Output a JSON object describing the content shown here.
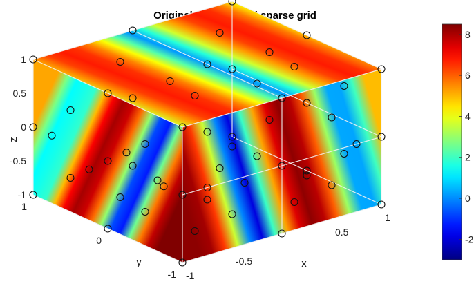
{
  "chart_data": {
    "type": "heatmap",
    "subtype": "3d-slice",
    "title": "Original function and sparse grid",
    "xlabel": "x",
    "ylabel": "y",
    "zlabel": "z",
    "x_ticks": [
      -1,
      -0.5,
      0,
      0.5,
      1
    ],
    "x_tick_labels": [
      "-1",
      "-0.5",
      "",
      "0.5",
      "1"
    ],
    "y_ticks": [
      -1,
      0,
      1
    ],
    "y_tick_labels": [
      "-1",
      "0",
      "1"
    ],
    "z_ticks": [
      -1,
      -0.5,
      0,
      0.5,
      1
    ],
    "z_tick_labels": [
      "-1",
      "-0.5",
      "0",
      "0.5",
      "1"
    ],
    "xlim": [
      -1,
      1
    ],
    "ylim": [
      -1,
      1
    ],
    "zlim": [
      -1,
      1
    ],
    "slices": {
      "x": [
        -1,
        0,
        1
      ],
      "y": [
        -1,
        1
      ],
      "z": [
        -1,
        0,
        1
      ]
    },
    "colorbar": {
      "colormap": "jet",
      "range": [
        -3,
        8.5
      ],
      "ticks": [
        -2,
        0,
        2,
        4,
        6,
        8
      ],
      "tick_labels": [
        "-2",
        "0",
        "2",
        "4",
        "6",
        "8"
      ]
    },
    "grid": false,
    "marker": "open-circle",
    "grid_points": [
      [
        -1,
        -1,
        1
      ],
      [
        1,
        -1,
        1
      ],
      [
        1,
        1,
        1
      ],
      [
        -1,
        1,
        1
      ],
      [
        -1,
        -1,
        -1
      ],
      [
        1,
        -1,
        -1
      ],
      [
        1,
        1,
        -1
      ],
      [
        -1,
        1,
        -1
      ],
      [
        0,
        -1,
        1
      ],
      [
        0,
        1,
        1
      ],
      [
        -1,
        0,
        1
      ],
      [
        1,
        0,
        1
      ],
      [
        0,
        0,
        1
      ],
      [
        0,
        -1,
        -1
      ],
      [
        0,
        1,
        -1
      ],
      [
        -1,
        0,
        -1
      ],
      [
        1,
        0,
        -1
      ],
      [
        0,
        0,
        -1
      ],
      [
        -1,
        -1,
        0
      ],
      [
        1,
        -1,
        0
      ],
      [
        1,
        1,
        0
      ],
      [
        -1,
        1,
        0
      ],
      [
        0,
        -1,
        0
      ],
      [
        0,
        1,
        0
      ],
      [
        -1,
        0,
        0
      ],
      [
        1,
        0,
        0
      ],
      [
        0,
        0,
        0
      ],
      [
        -0.5,
        -1,
        0.5
      ],
      [
        0.5,
        -1,
        0.5
      ],
      [
        -0.5,
        -1,
        -0.5
      ],
      [
        0.5,
        -1,
        -0.5
      ],
      [
        -1,
        -0.5,
        0.5
      ],
      [
        -1,
        0.5,
        0.5
      ],
      [
        -1,
        -0.5,
        -0.5
      ],
      [
        -1,
        0.5,
        -0.5
      ],
      [
        1,
        -0.5,
        0.5
      ],
      [
        1,
        0.5,
        0.5
      ],
      [
        1,
        -0.5,
        -0.5
      ],
      [
        1,
        0.5,
        -0.5
      ],
      [
        -0.5,
        0.5,
        1
      ],
      [
        0.5,
        0.5,
        1
      ],
      [
        -0.5,
        -0.5,
        1
      ],
      [
        0.5,
        -0.5,
        1
      ],
      [
        -0.5,
        0.5,
        -1
      ],
      [
        0.5,
        0.5,
        -1
      ],
      [
        -0.5,
        -0.5,
        -1
      ],
      [
        0.5,
        -0.5,
        -1
      ],
      [
        -0.25,
        -1,
        0.25
      ],
      [
        0.25,
        -1,
        -0.25
      ],
      [
        -1,
        0.25,
        -0.25
      ],
      [
        -1,
        -0.25,
        0.25
      ],
      [
        0,
        0.5,
        0.5
      ],
      [
        0,
        -0.5,
        -0.5
      ],
      [
        0.5,
        0,
        0.5
      ],
      [
        -0.5,
        0,
        -0.5
      ],
      [
        -0.75,
        -1,
        0
      ],
      [
        0.75,
        -1,
        0
      ],
      [
        -1,
        0.75,
        0
      ],
      [
        -1,
        -0.75,
        0
      ]
    ]
  }
}
